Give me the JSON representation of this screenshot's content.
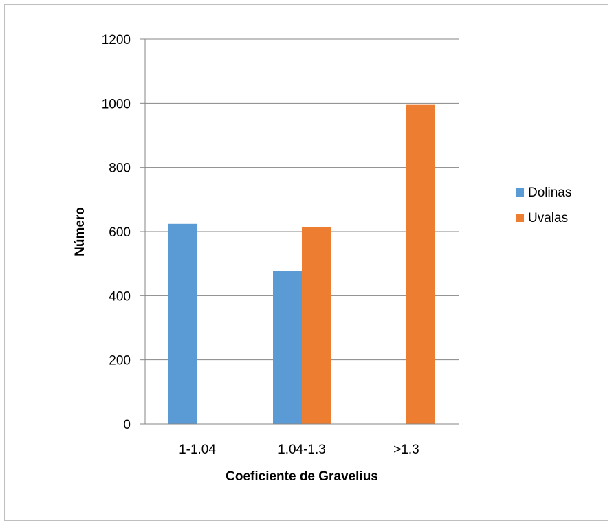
{
  "chart_data": {
    "type": "bar",
    "title": "",
    "xlabel": "Coeficiente de Gravelius",
    "ylabel": "Número",
    "categories": [
      "1-1.04",
      "1.04-1.3",
      ">1.3"
    ],
    "series": [
      {
        "name": "Dolinas",
        "color": "#5b9bd5",
        "values": [
          624,
          477,
          0
        ]
      },
      {
        "name": "Uvalas",
        "color": "#ed7d31",
        "values": [
          0,
          614,
          995
        ]
      }
    ],
    "ylim": [
      0,
      1200
    ],
    "yticks": [
      0,
      200,
      400,
      600,
      800,
      1000,
      1200
    ],
    "grid": true,
    "legend_position": "right"
  }
}
